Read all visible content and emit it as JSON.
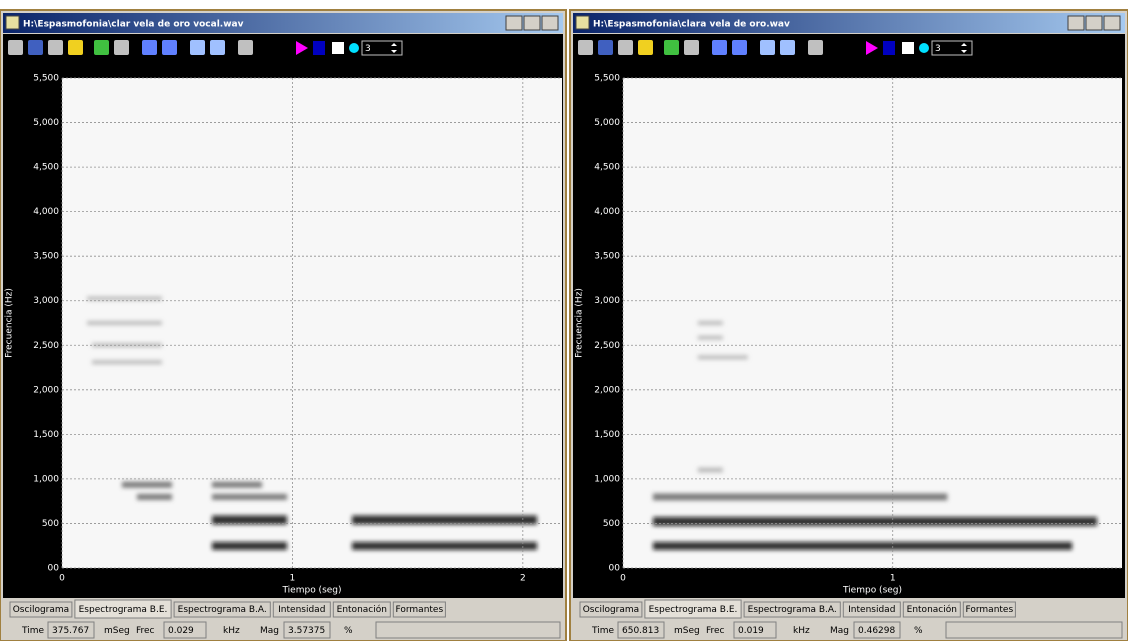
{
  "windows": [
    {
      "title": "H:\\Espasmofonia\\clar vela de oro vocal.wav",
      "toolbar_value": 3,
      "spectrogram": {
        "ylabel": "Frecuencia (Hz)",
        "xlabel": "Tiempo (seg)",
        "ylim": [
          0,
          5500
        ],
        "yticks": [
          {
            "value": 0,
            "label": "00"
          },
          500,
          {
            "value": 1000,
            "label": "1,000"
          },
          {
            "value": 1500,
            "label": "1,500"
          },
          {
            "value": 2000,
            "label": "2,000"
          },
          {
            "value": 2500,
            "label": "2,500"
          },
          {
            "value": 3000,
            "label": "3,000"
          },
          {
            "value": 3500,
            "label": "3,500"
          },
          {
            "value": 4000,
            "label": "4,000"
          },
          {
            "value": 4500,
            "label": "4,500"
          },
          {
            "value": 5000,
            "label": "5,000"
          },
          {
            "value": 5500,
            "label": "5,500"
          }
        ],
        "xlim": [
          0,
          2.17
        ],
        "xticks": [
          0,
          1,
          2
        ]
      },
      "tabs": [
        "Oscilograma",
        "Espectrograma B.E.",
        "Espectrograma B.A.",
        "Intensidad",
        "Entonación",
        "Formantes"
      ],
      "status": {
        "time_label": "Time",
        "time": 375.767,
        "time_unit": "mSeg",
        "freq_label": "Frec",
        "freq": 0.029,
        "freq_unit": "kHz",
        "mag_label": "Mag",
        "mag": 3.57375,
        "mag_unit": "%"
      }
    },
    {
      "title": "H:\\Espasmofonia\\clara vela de oro.wav",
      "toolbar_value": 3,
      "spectrogram": {
        "ylabel": "Frecuencia (Hz)",
        "xlabel": "Tiempo (seg)",
        "ylim": [
          0,
          5500
        ],
        "yticks": [
          {
            "value": 0,
            "label": "00"
          },
          500,
          {
            "value": 1000,
            "label": "1,000"
          },
          {
            "value": 1500,
            "label": "1,500"
          },
          {
            "value": 2000,
            "label": "2,000"
          },
          {
            "value": 2500,
            "label": "2,500"
          },
          {
            "value": 3000,
            "label": "3,000"
          },
          {
            "value": 3500,
            "label": "3,500"
          },
          {
            "value": 4000,
            "label": "4,000"
          },
          {
            "value": 4500,
            "label": "4,500"
          },
          {
            "value": 5000,
            "label": "5,000"
          },
          {
            "value": 5500,
            "label": "5,500"
          }
        ],
        "xlim": [
          0,
          1.85
        ],
        "xticks": [
          0,
          1
        ]
      },
      "tabs": [
        "Oscilograma",
        "Espectrograma B.E.",
        "Espectrograma B.A.",
        "Intensidad",
        "Entonación",
        "Formantes"
      ],
      "status": {
        "time_label": "Time",
        "time": 650.813,
        "time_unit": "mSeg",
        "freq_label": "Frec",
        "freq": 0.019,
        "freq_unit": "kHz",
        "mag_label": "Mag",
        "mag": 0.46298,
        "mag_unit": "%"
      }
    }
  ]
}
